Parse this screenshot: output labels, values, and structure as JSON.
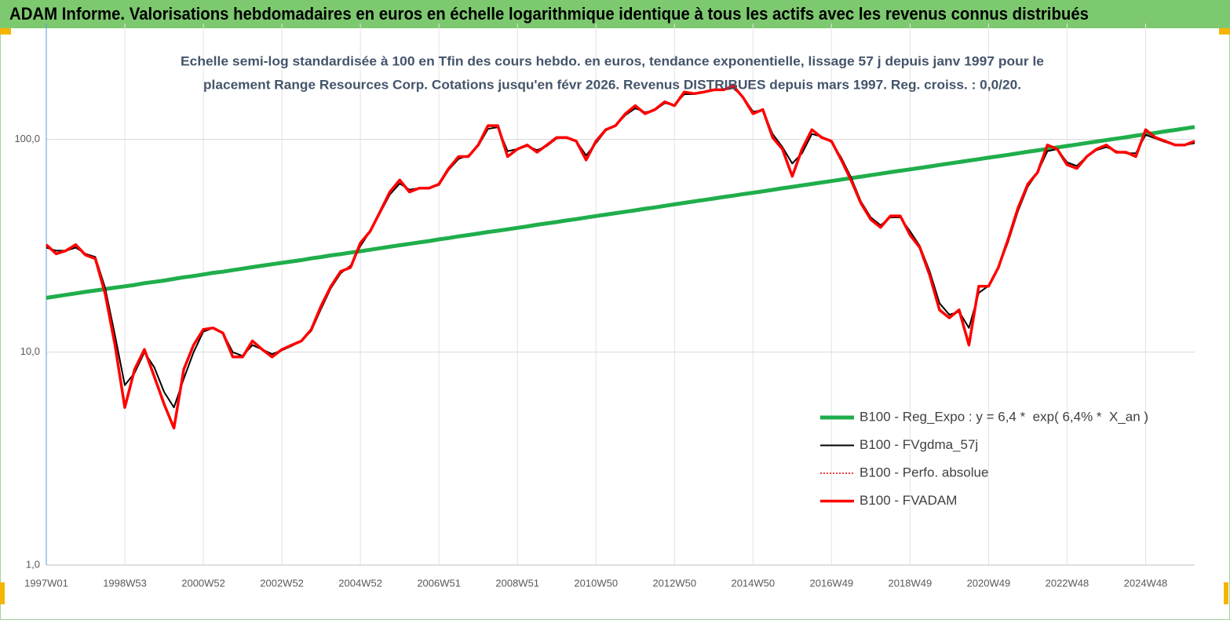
{
  "chart_data": {
    "type": "line",
    "title": "ADAM Informe. Valorisations hebdomadaires en euros en échelle logarithmique identique à tous les actifs avec les revenus connus distribués",
    "subtitle": [
      "Echelle semi-log standardisée à 100 en Tfin des cours hebdo. en euros, tendance exponentielle, lissage 57 j depuis janv 1997 pour le",
      "placement Range Resources Corp. Cotations jusqu'en févr 2026. Revenus DISTRIBUES depuis mars 1997. Reg. croiss. : 0,0/20."
    ],
    "log_scale": true,
    "grid": true,
    "legend": "lower right",
    "ylim": [
      1,
      350
    ],
    "yticks": [
      {
        "value": 1,
        "label": "1,0"
      },
      {
        "value": 10,
        "label": "10,0"
      },
      {
        "value": 100,
        "label": "100,0"
      }
    ],
    "categories": [
      "1997W01",
      null,
      null,
      null,
      null,
      null,
      null,
      null,
      "1998W53",
      null,
      null,
      null,
      null,
      null,
      null,
      null,
      "2000W52",
      null,
      null,
      null,
      null,
      null,
      null,
      null,
      "2002W52",
      null,
      null,
      null,
      null,
      null,
      null,
      null,
      "2004W52",
      null,
      null,
      null,
      null,
      null,
      null,
      null,
      "2006W51",
      null,
      null,
      null,
      null,
      null,
      null,
      null,
      "2008W51",
      null,
      null,
      null,
      null,
      null,
      null,
      null,
      "2010W50",
      null,
      null,
      null,
      null,
      null,
      null,
      null,
      "2012W50",
      null,
      null,
      null,
      null,
      null,
      null,
      null,
      "2014W50",
      null,
      null,
      null,
      null,
      null,
      null,
      null,
      "2016W49",
      null,
      null,
      null,
      null,
      null,
      null,
      null,
      "2018W49",
      null,
      null,
      null,
      null,
      null,
      null,
      null,
      "2020W49",
      null,
      null,
      null,
      null,
      null,
      null,
      null,
      "2022W48",
      null,
      null,
      null,
      null,
      null,
      null,
      null,
      "2024W48",
      null,
      null,
      null,
      null,
      null
    ],
    "series": [
      {
        "name": "B100 - Reg_Expo : y = 6,4 *  exp( 6,4% *  X_an )",
        "color": "#1fae4b",
        "values": [
          18.0,
          18.3,
          18.6,
          18.9,
          19.2,
          19.5,
          19.8,
          20.1,
          20.4,
          20.7,
          21.1,
          21.4,
          21.7,
          22.1,
          22.5,
          22.8,
          23.2,
          23.6,
          23.9,
          24.3,
          24.7,
          25.1,
          25.5,
          25.9,
          26.3,
          26.7,
          27.1,
          27.6,
          28.0,
          28.5,
          28.9,
          29.4,
          29.8,
          30.3,
          30.8,
          31.3,
          31.8,
          32.3,
          32.8,
          33.3,
          33.9,
          34.4,
          35.0,
          35.5,
          36.1,
          36.7,
          37.2,
          37.8,
          38.4,
          39.0,
          39.7,
          40.3,
          40.9,
          41.6,
          42.2,
          42.9,
          43.6,
          44.3,
          45.0,
          45.7,
          46.4,
          47.2,
          47.9,
          48.7,
          49.5,
          50.3,
          51.1,
          51.9,
          52.7,
          53.6,
          54.4,
          55.3,
          56.1,
          57.0,
          57.9,
          58.9,
          59.8,
          60.8,
          61.7,
          62.7,
          63.7,
          64.7,
          65.8,
          66.8,
          67.9,
          69.0,
          70.1,
          71.2,
          72.3,
          73.4,
          74.6,
          75.8,
          77.0,
          78.2,
          79.5,
          80.7,
          82.0,
          83.3,
          84.6,
          86.0,
          87.4,
          88.8,
          90.2,
          91.6,
          93.1,
          94.5,
          96.1,
          97.6,
          99.2,
          100.7,
          102.3,
          104.0,
          105.6,
          107.3,
          109.0,
          110.7,
          112.5,
          114.3
        ]
      },
      {
        "name": "B100 - FVgdma_57j",
        "color": "#000000",
        "values": [
          31,
          30,
          30,
          31,
          29,
          28,
          20,
          12,
          7,
          8,
          10,
          8.5,
          6.5,
          5.5,
          7.5,
          10,
          12.5,
          13,
          12.3,
          10,
          9.6,
          10.8,
          10.3,
          9.8,
          10.2,
          10.7,
          11.3,
          12.6,
          16,
          20,
          23.5,
          25.5,
          31.5,
          37,
          45,
          55,
          62,
          58,
          59,
          59,
          61,
          72,
          81,
          84,
          93,
          112,
          114,
          88,
          90,
          93,
          89,
          93,
          101,
          102,
          98,
          84,
          96,
          110,
          116,
          130,
          140,
          134,
          137,
          148,
          145,
          163,
          163,
          166,
          170,
          171,
          174,
          158,
          135,
          137,
          106,
          92,
          77,
          86,
          106,
          103,
          97,
          82,
          66,
          51,
          43,
          39.5,
          43,
          43,
          37,
          31.5,
          24,
          17,
          15,
          15.5,
          13,
          19,
          20.5,
          25,
          33,
          46,
          60,
          70,
          88,
          90,
          78,
          75,
          83,
          89,
          92,
          88,
          86,
          86,
          105,
          101,
          97,
          94,
          94,
          96
        ]
      },
      {
        "name": "B100 - Perfo. absolue",
        "color": "#e00000",
        "line_style": "dotted",
        "values": [
          32,
          29,
          30,
          32,
          28.6,
          27.5,
          18.8,
          10.8,
          5.5,
          8.3,
          10.3,
          7.7,
          5.7,
          4.4,
          8.3,
          10.8,
          12.8,
          13,
          12.3,
          9.5,
          9.5,
          11.3,
          10.3,
          9.5,
          10.3,
          10.8,
          11.3,
          12.8,
          16.5,
          20.4,
          24,
          25,
          32.6,
          37,
          45.6,
          56.6,
          64.4,
          56.6,
          59,
          59,
          61.6,
          73,
          83,
          83,
          94,
          116,
          116,
          83,
          90,
          94,
          87,
          94,
          102,
          102,
          98,
          80,
          98,
          111,
          116,
          132,
          144,
          132,
          138,
          150,
          144,
          167,
          164,
          167,
          171,
          171,
          178,
          157,
          132,
          138,
          102,
          90,
          67,
          90,
          111,
          102,
          98,
          80,
          64,
          50,
          42,
          38.6,
          43.7,
          43.7,
          35.5,
          31,
          23,
          15.8,
          14.5,
          15.8,
          10.8,
          20.4,
          20.4,
          25,
          34,
          47.5,
          61.6,
          70,
          94,
          90,
          76,
          73,
          83,
          90,
          94,
          87,
          87,
          83,
          111,
          102,
          98,
          94,
          94,
          98
        ]
      },
      {
        "name": "B100 - FVADAM",
        "color": "#ff0000",
        "values": [
          32,
          29,
          30,
          32,
          28.6,
          27.5,
          18.8,
          10.8,
          5.5,
          8.3,
          10.3,
          7.7,
          5.7,
          4.4,
          8.3,
          10.8,
          12.8,
          13,
          12.3,
          9.5,
          9.5,
          11.3,
          10.3,
          9.5,
          10.3,
          10.8,
          11.3,
          12.8,
          16.5,
          20.4,
          24,
          25,
          32.6,
          37,
          45.6,
          56.6,
          64.4,
          56.6,
          59,
          59,
          61.6,
          73,
          83,
          83,
          94,
          116,
          116,
          83,
          90,
          94,
          87,
          94,
          102,
          102,
          98,
          80,
          98,
          111,
          116,
          132,
          144,
          132,
          138,
          150,
          144,
          167,
          164,
          167,
          171,
          171,
          178,
          157,
          132,
          138,
          102,
          90,
          67,
          90,
          111,
          102,
          98,
          80,
          64,
          50,
          42,
          38.6,
          43.7,
          43.7,
          35.5,
          31,
          23,
          15.8,
          14.5,
          15.8,
          10.8,
          20.4,
          20.4,
          25,
          34,
          47.5,
          61.6,
          70,
          94,
          90,
          76,
          73,
          83,
          90,
          94,
          87,
          87,
          83,
          111,
          102,
          98,
          94,
          94,
          98
        ]
      }
    ]
  }
}
